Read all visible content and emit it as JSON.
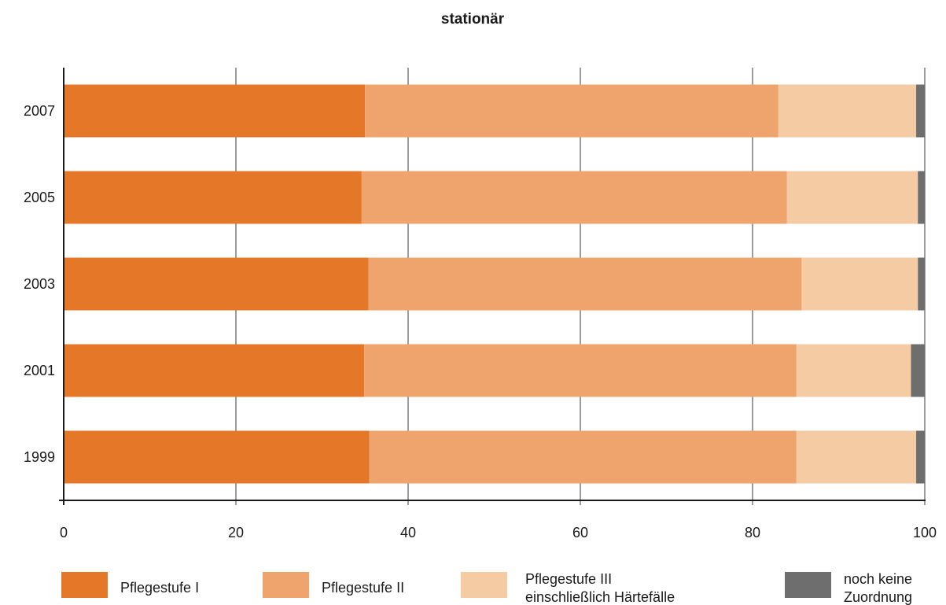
{
  "chart_data": {
    "type": "bar",
    "orientation": "horizontal",
    "stacked": true,
    "title": "stationär",
    "categories": [
      "2007",
      "2005",
      "2003",
      "2001",
      "1999"
    ],
    "xlim": [
      0,
      100
    ],
    "xticks": [
      "0",
      "20",
      "40",
      "60",
      "80",
      "100"
    ],
    "grid": "vertical",
    "legend_position": "bottom",
    "series": [
      {
        "name": "Pflegestufe I",
        "color": "#e47828",
        "values": [
          35.0,
          34.6,
          35.4,
          34.9,
          35.5
        ]
      },
      {
        "name": "Pflegestufe II",
        "color": "#efa46e",
        "values": [
          48.0,
          49.4,
          50.3,
          50.2,
          49.6
        ]
      },
      {
        "name": "Pflegestufe III einschließlich Härtefälle",
        "color": "#f5cba4",
        "values": [
          16.0,
          15.2,
          13.5,
          13.3,
          13.9
        ]
      },
      {
        "name": "noch keine Zuordnung",
        "color": "#6e6e6e",
        "values": [
          1.0,
          0.8,
          0.8,
          1.6,
          1.0
        ]
      }
    ]
  },
  "legend": [
    {
      "lines": [
        "Pflegestufe I"
      ],
      "color": "#e47828"
    },
    {
      "lines": [
        "Pflegestufe II"
      ],
      "color": "#efa46e"
    },
    {
      "lines": [
        "Pflegestufe III",
        "einschließlich Härtefälle"
      ],
      "color": "#f5cba4"
    },
    {
      "lines": [
        "noch keine",
        "Zuordnung"
      ],
      "color": "#6e6e6e"
    }
  ]
}
